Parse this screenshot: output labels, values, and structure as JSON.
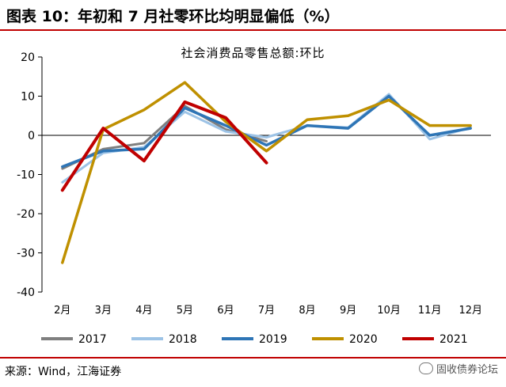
{
  "header": {
    "title": "图表 10：年初和 7 月社零环比均明显偏低（%）"
  },
  "source": {
    "text": "来源：Wind，江海证券"
  },
  "watermark": {
    "text": "固收债券论坛"
  },
  "chart_data": {
    "type": "line",
    "title": "社会消费品零售总额:环比",
    "xlabel": "",
    "ylabel": "",
    "categories": [
      "2月",
      "3月",
      "4月",
      "5月",
      "6月",
      "7月",
      "8月",
      "9月",
      "10月",
      "11月",
      "12月"
    ],
    "ylim": [
      -40,
      20
    ],
    "yticks": [
      20,
      10,
      0,
      -10,
      -20,
      -30,
      -40
    ],
    "grid": false,
    "legend_position": "bottom",
    "series": [
      {
        "name": "2017",
        "color": "#7f7f7f",
        "width": 3,
        "values": [
          -8.5,
          -3.5,
          -2.0,
          7.5,
          1.5,
          -1.5,
          null,
          null,
          null,
          null,
          null
        ]
      },
      {
        "name": "2018",
        "color": "#9dc3e6",
        "width": 3,
        "values": [
          -12.0,
          -4.5,
          -3.0,
          6.0,
          1.0,
          -0.5,
          2.5,
          2.0,
          10.5,
          -1.0,
          2.0
        ]
      },
      {
        "name": "2019",
        "color": "#2e75b6",
        "width": 3.5,
        "values": [
          -8.0,
          -4.0,
          -3.5,
          7.0,
          2.5,
          -2.5,
          2.5,
          1.8,
          10.0,
          0.0,
          1.8
        ]
      },
      {
        "name": "2020",
        "color": "#bf9000",
        "width": 3.5,
        "values": [
          -32.5,
          1.5,
          6.5,
          13.5,
          3.5,
          -4.0,
          4.0,
          5.0,
          9.0,
          2.5,
          2.5
        ]
      },
      {
        "name": "2021",
        "color": "#c00000",
        "width": 4,
        "values": [
          -14.0,
          1.8,
          -6.5,
          8.5,
          4.5,
          -7.0,
          null,
          null,
          null,
          null,
          null
        ]
      }
    ]
  }
}
